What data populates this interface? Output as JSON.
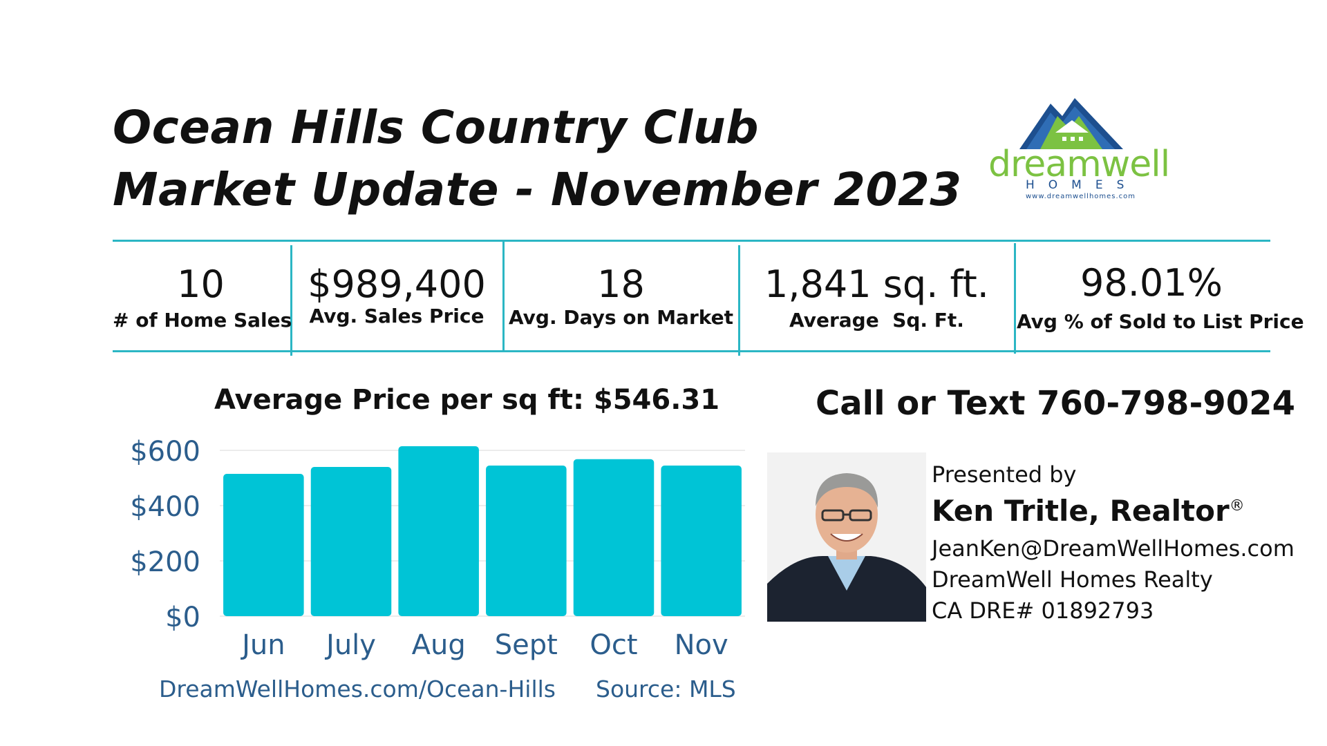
{
  "header": {
    "title_line1": "Ocean Hills Country Club",
    "title_line2": "Market Update - November 2023"
  },
  "logo": {
    "word": "dreamwell",
    "sub": "HOMES",
    "url": "www.dreamwellhomes.com",
    "colors": {
      "green": "#7cc242",
      "blue": "#1d4f8f"
    }
  },
  "stats": [
    {
      "value": "10",
      "label": "# of Home Sales"
    },
    {
      "value": "$989,400",
      "label": "Avg. Sales Price"
    },
    {
      "value": "18",
      "label": "Avg. Days on Market"
    },
    {
      "value": "1,841 sq. ft.",
      "label": "Average  Sq. Ft."
    },
    {
      "value": "98.01%",
      "label": "Avg % of Sold to List Price"
    }
  ],
  "chart_data": {
    "type": "bar",
    "title": "Average Price per sq ft: $546.31",
    "categories": [
      "Jun",
      "July",
      "Aug",
      "Sept",
      "Oct",
      "Nov"
    ],
    "values": [
      515,
      540,
      615,
      545,
      568,
      545
    ],
    "ylim": [
      0,
      700
    ],
    "yticks": [
      0,
      200,
      400,
      600
    ],
    "ytick_labels": [
      "$0",
      "$200",
      "$400",
      "$600"
    ],
    "bar_color": "#00c4d6",
    "grid": true
  },
  "footer": {
    "link": "DreamWellHomes.com/Ocean-Hills",
    "source": "Source: MLS"
  },
  "contact": {
    "call": "Call or Text 760-798-9024",
    "presented_by": "Presented by",
    "name": "Ken Tritle, Realtor",
    "name_mark": "®",
    "email": "JeanKen@DreamWellHomes.com",
    "company": "DreamWell Homes Realty",
    "license": "CA DRE# 01892793"
  }
}
